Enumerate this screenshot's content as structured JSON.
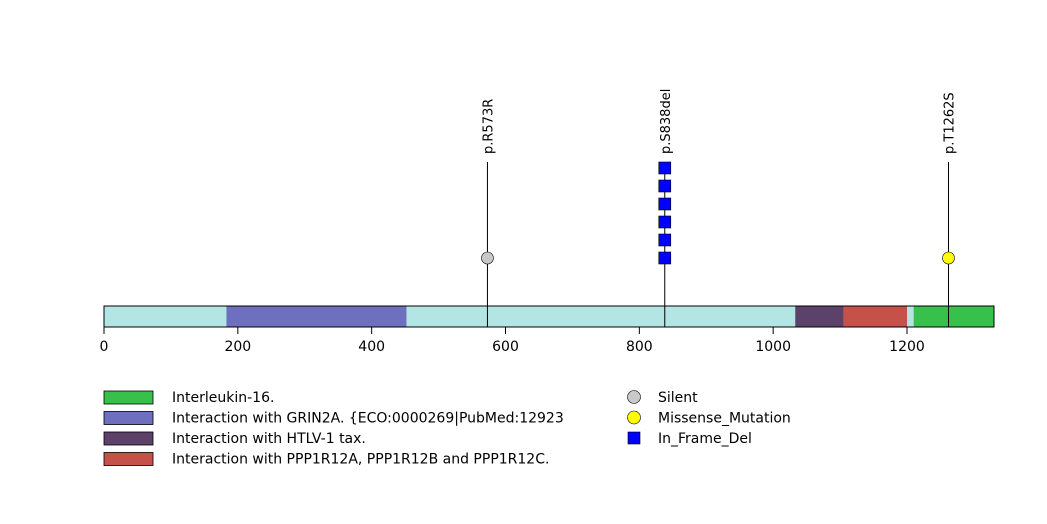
{
  "chart_data": {
    "type": "lollipop",
    "protein_length": 1330,
    "xlim": [
      0,
      1330
    ],
    "x_ticks": [
      0,
      200,
      400,
      600,
      800,
      1000,
      1200
    ],
    "background_color": "#b3e5e5",
    "domains": [
      {
        "name": "Interaction with GRIN2A. {ECO:0000269|PubMed:12923",
        "start": 183,
        "end": 452,
        "color": "#6e6fbf"
      },
      {
        "name": "Interaction with HTLV-1 tax.",
        "start": 1033,
        "end": 1105,
        "color": "#5c416a"
      },
      {
        "name": "Interaction with PPP1R12A, PPP1R12B and PPP1R12C.",
        "start": 1105,
        "end": 1200,
        "color": "#c55148"
      },
      {
        "name": "Interleukin-16.",
        "start": 1210,
        "end": 1330,
        "color": "#37c04a"
      }
    ],
    "mutations": [
      {
        "label": "p.R573R",
        "position": 573,
        "count": 1,
        "type": "Silent"
      },
      {
        "label": "p.S838del",
        "position": 838,
        "count": 6,
        "type": "In_Frame_Del"
      },
      {
        "label": "p.T1262S",
        "position": 1262,
        "count": 1,
        "type": "Missense_Mutation"
      }
    ],
    "domain_legend": [
      {
        "label": "Interleukin-16.",
        "color": "#37c04a"
      },
      {
        "label": "Interaction with GRIN2A. {ECO:0000269|PubMed:12923",
        "color": "#6e6fbf"
      },
      {
        "label": "Interaction with HTLV-1 tax.",
        "color": "#5c416a"
      },
      {
        "label": "Interaction with PPP1R12A, PPP1R12B and PPP1R12C.",
        "color": "#c55148"
      }
    ],
    "mutation_legend": [
      {
        "label": "Silent",
        "color": "#c8c8c8",
        "shape": "circle"
      },
      {
        "label": "Missense_Mutation",
        "color": "#ffff00",
        "shape": "circle"
      },
      {
        "label": "In_Frame_Del",
        "color": "#0000ff",
        "shape": "square"
      }
    ]
  }
}
